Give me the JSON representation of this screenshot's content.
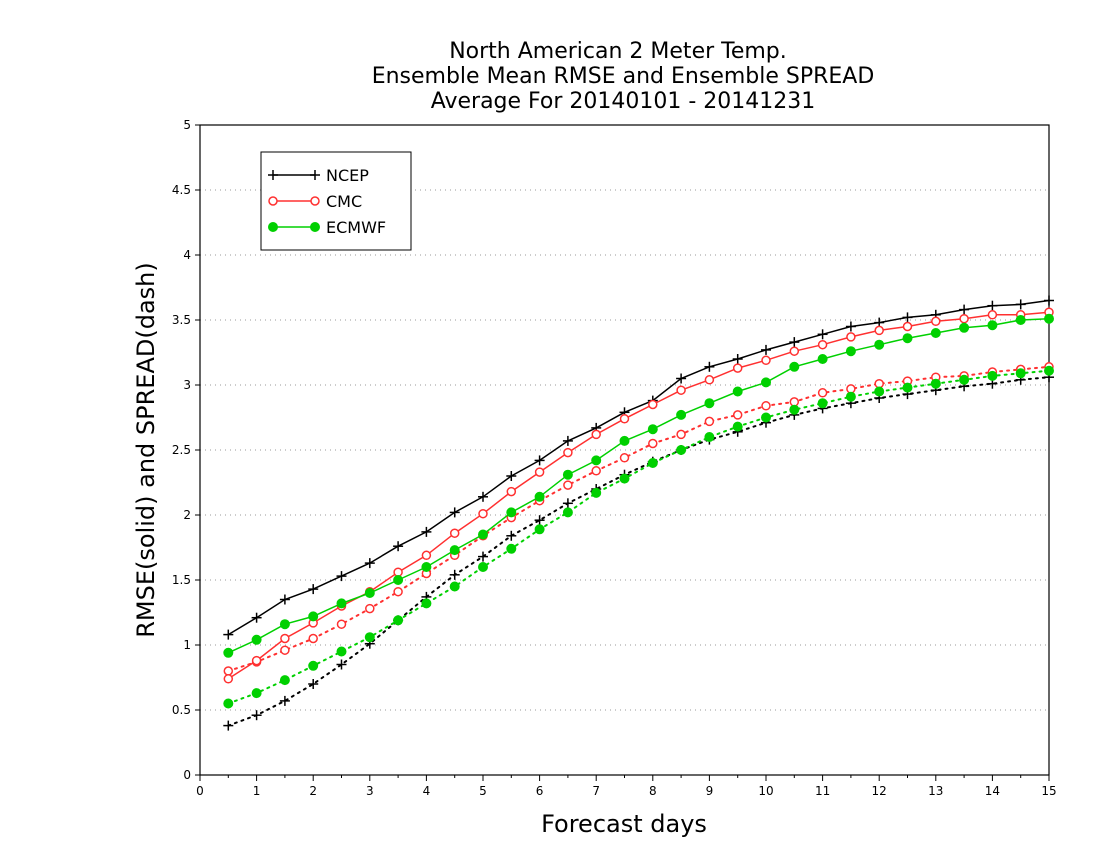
{
  "chart_data": {
    "type": "line",
    "title_lines": [
      "North American 2 Meter Temp.",
      "Ensemble Mean RMSE and Ensemble SPREAD",
      "Average For 20140101 - 20141231"
    ],
    "xlabel": "Forecast days",
    "ylabel": "RMSE(solid) and SPREAD(dash)",
    "xlim": [
      0,
      15
    ],
    "ylim": [
      0,
      5
    ],
    "x_ticks": [
      "0",
      "1",
      "2",
      "3",
      "4",
      "5",
      "6",
      "7",
      "8",
      "9",
      "10",
      "11",
      "12",
      "13",
      "14",
      "15"
    ],
    "y_ticks": [
      "0",
      "0.5",
      "1",
      "1.5",
      "2",
      "2.5",
      "3",
      "3.5",
      "4",
      "4.5",
      "5"
    ],
    "grid": "horizontal dotted",
    "legend_position": "top-left",
    "x": [
      0.5,
      1,
      1.5,
      2,
      2.5,
      3,
      3.5,
      4,
      4.5,
      5,
      5.5,
      6,
      6.5,
      7,
      7.5,
      8,
      8.5,
      9,
      9.5,
      10,
      10.5,
      11,
      11.5,
      12,
      12.5,
      13,
      13.5,
      14,
      14.5,
      15
    ],
    "series": [
      {
        "name": "NCEP",
        "color": "#000000",
        "marker": "plus",
        "rmse": [
          1.08,
          1.21,
          1.35,
          1.43,
          1.53,
          1.63,
          1.76,
          1.87,
          2.02,
          2.14,
          2.3,
          2.42,
          2.57,
          2.67,
          2.79,
          2.88,
          3.05,
          3.14,
          3.2,
          3.27,
          3.33,
          3.39,
          3.45,
          3.48,
          3.52,
          3.54,
          3.58,
          3.61,
          3.62,
          3.65
        ],
        "spread": [
          0.38,
          0.46,
          0.57,
          0.7,
          0.85,
          1.01,
          1.19,
          1.37,
          1.54,
          1.68,
          1.84,
          1.96,
          2.09,
          2.2,
          2.31,
          2.41,
          2.5,
          2.58,
          2.64,
          2.71,
          2.77,
          2.82,
          2.86,
          2.9,
          2.93,
          2.96,
          2.99,
          3.01,
          3.04,
          3.06
        ]
      },
      {
        "name": "CMC",
        "color": "#ff3030",
        "marker": "open-circle",
        "rmse": [
          0.74,
          0.88,
          1.05,
          1.17,
          1.3,
          1.41,
          1.56,
          1.69,
          1.86,
          2.01,
          2.18,
          2.33,
          2.48,
          2.62,
          2.74,
          2.85,
          2.96,
          3.04,
          3.13,
          3.19,
          3.26,
          3.31,
          3.37,
          3.42,
          3.45,
          3.49,
          3.51,
          3.54,
          3.54,
          3.56
        ],
        "spread": [
          0.8,
          0.87,
          0.96,
          1.05,
          1.16,
          1.28,
          1.41,
          1.55,
          1.69,
          1.84,
          1.98,
          2.11,
          2.23,
          2.34,
          2.44,
          2.55,
          2.62,
          2.72,
          2.77,
          2.84,
          2.87,
          2.94,
          2.97,
          3.01,
          3.03,
          3.06,
          3.07,
          3.1,
          3.12,
          3.14
        ]
      },
      {
        "name": "ECMWF",
        "color": "#00d000",
        "marker": "filled-circle",
        "rmse": [
          0.94,
          1.04,
          1.16,
          1.22,
          1.32,
          1.4,
          1.5,
          1.6,
          1.73,
          1.85,
          2.02,
          2.14,
          2.31,
          2.42,
          2.57,
          2.66,
          2.77,
          2.86,
          2.95,
          3.02,
          3.14,
          3.2,
          3.26,
          3.31,
          3.36,
          3.4,
          3.44,
          3.46,
          3.5,
          3.51
        ],
        "spread": [
          0.55,
          0.63,
          0.73,
          0.84,
          0.95,
          1.06,
          1.19,
          1.32,
          1.45,
          1.6,
          1.74,
          1.89,
          2.02,
          2.17,
          2.28,
          2.4,
          2.5,
          2.6,
          2.68,
          2.75,
          2.81,
          2.86,
          2.91,
          2.95,
          2.98,
          3.01,
          3.04,
          3.07,
          3.09,
          3.11
        ]
      }
    ]
  }
}
